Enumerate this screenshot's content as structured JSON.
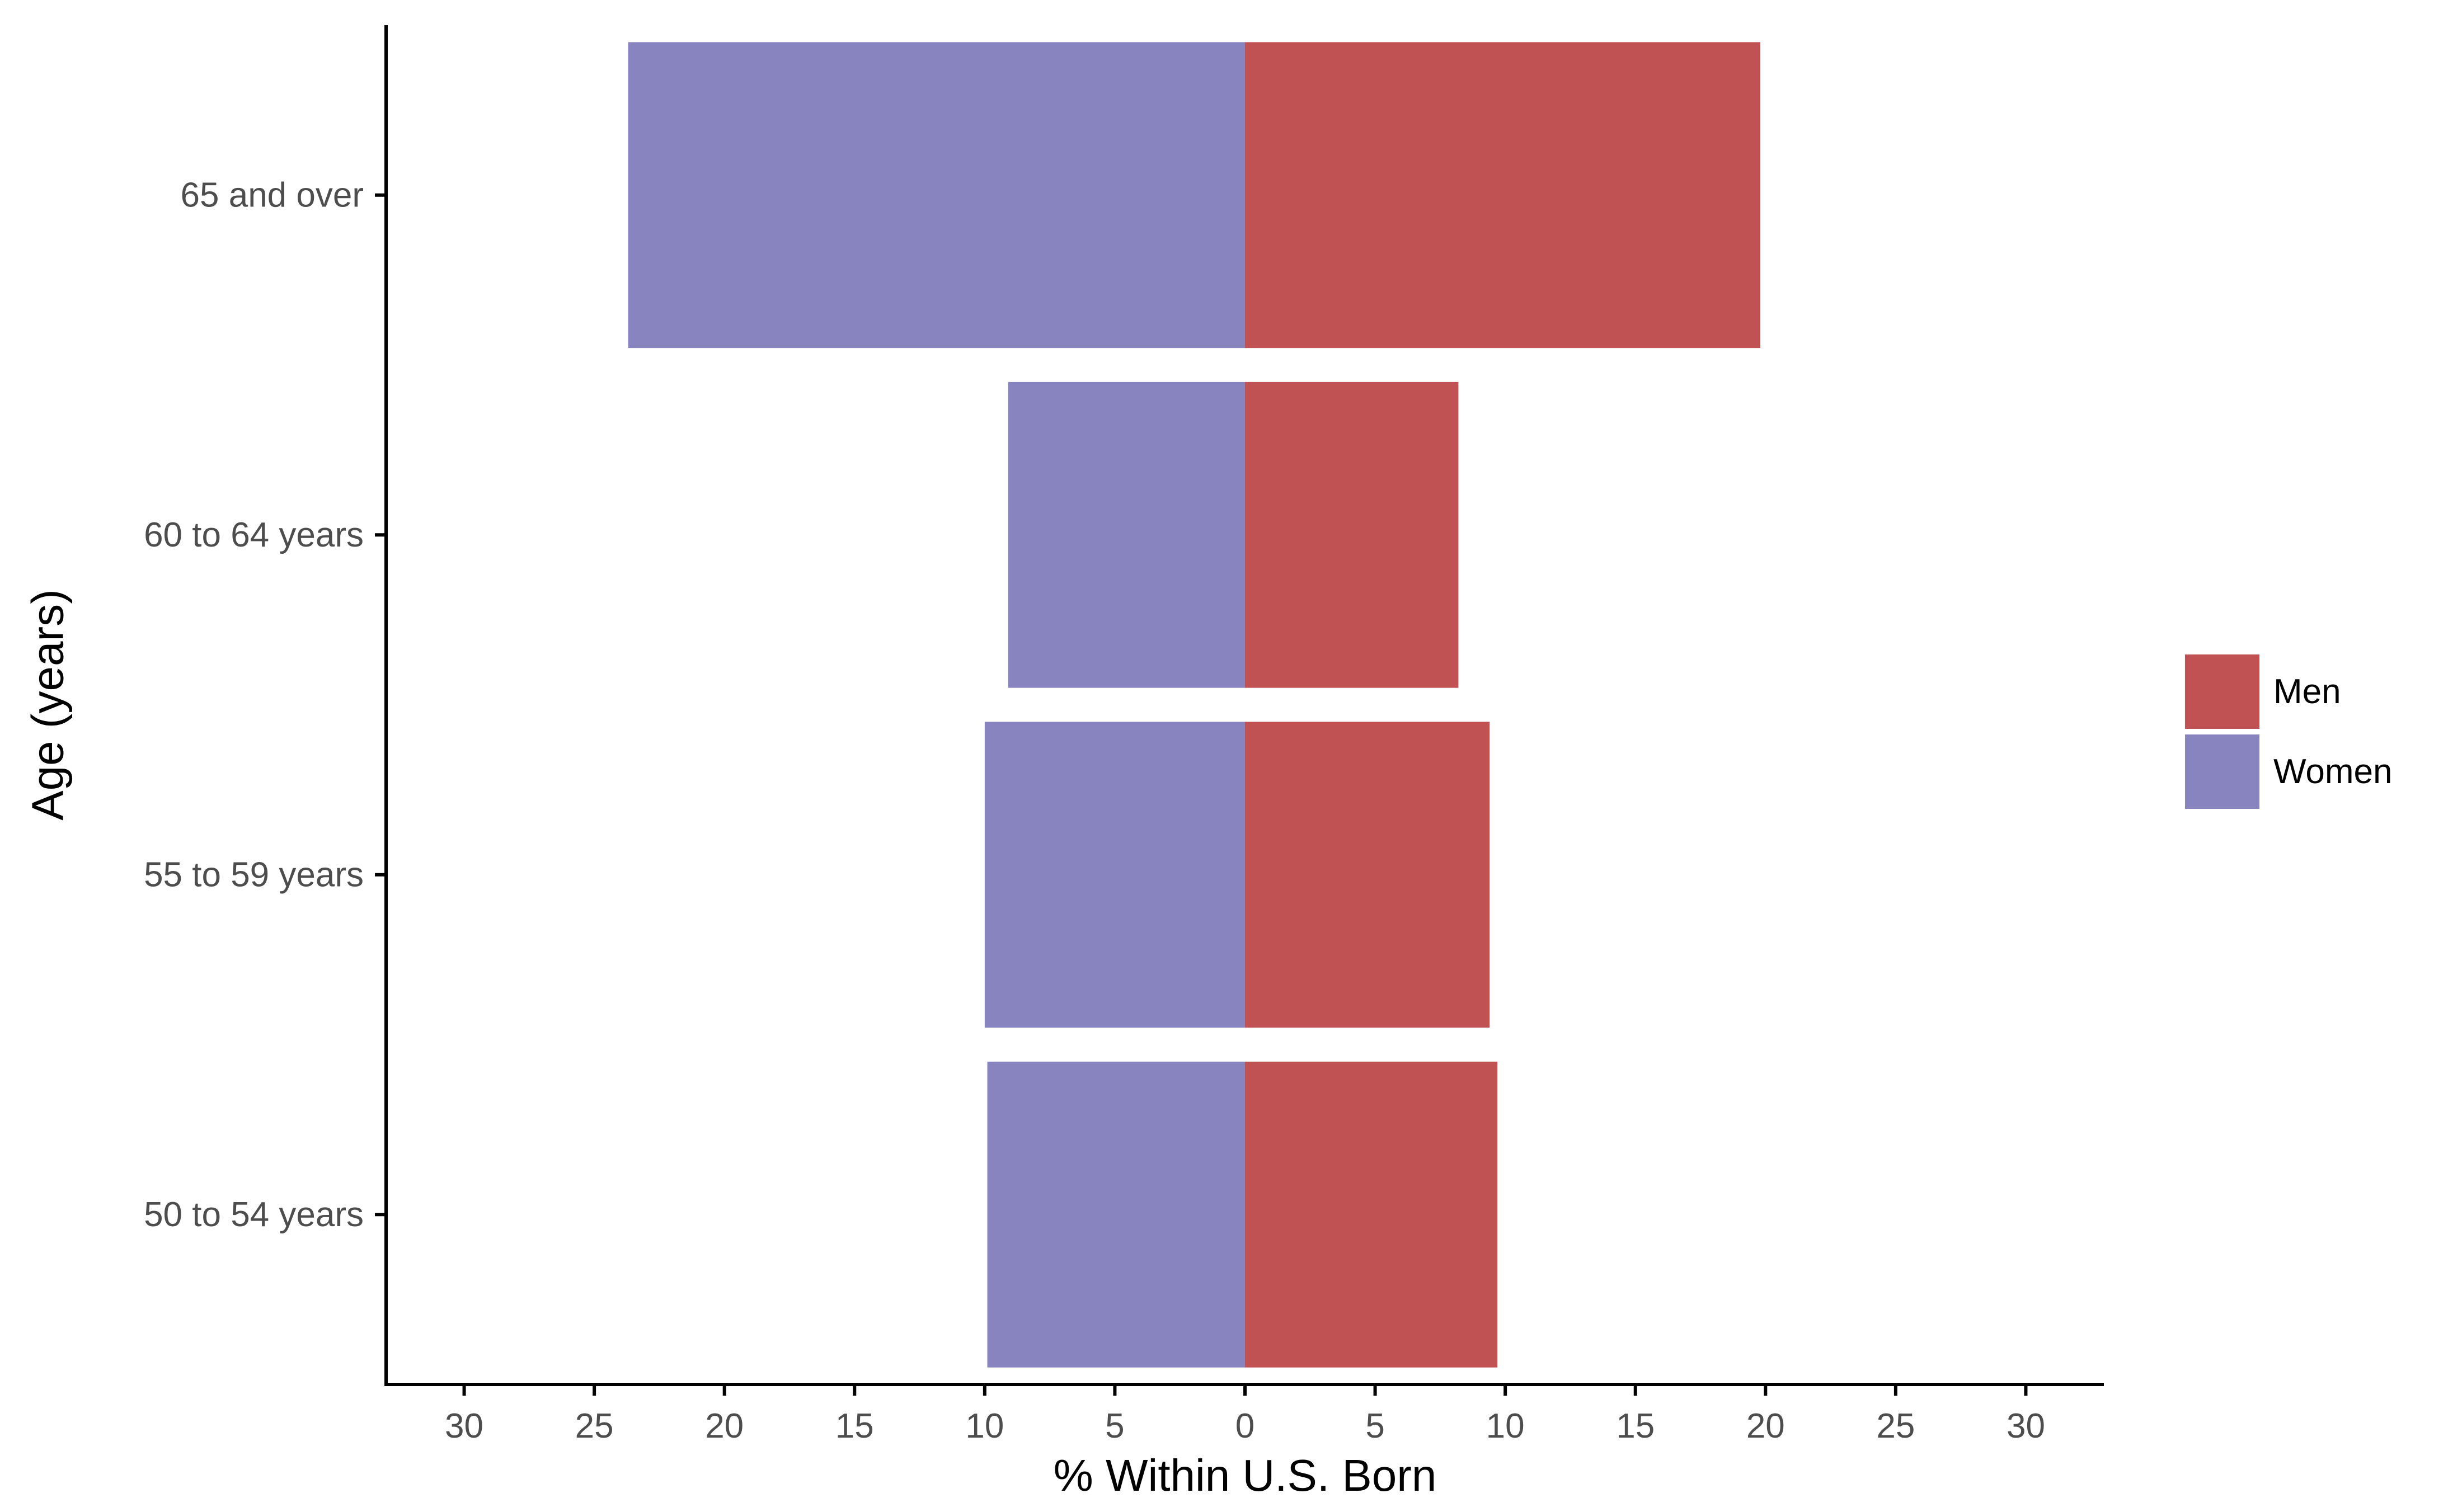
{
  "chart_data": {
    "type": "bar",
    "orientation": "horizontal",
    "layout": "population-pyramid",
    "categories": [
      "50 to 54 years",
      "55 to 59 years",
      "60 to 64 years",
      "65 and over"
    ],
    "series": [
      {
        "name": "Women",
        "side": "left",
        "color": "#8884C0",
        "values": [
          9.9,
          10.0,
          9.1,
          23.7
        ]
      },
      {
        "name": "Men",
        "side": "right",
        "color": "#C05254",
        "values": [
          9.7,
          9.4,
          8.2,
          19.8
        ]
      }
    ],
    "xlabel": "% Within U.S. Born",
    "ylabel": "Age (years)",
    "xlim": [
      -33,
      33
    ],
    "x_ticks": [
      -30,
      -25,
      -20,
      -15,
      -10,
      -5,
      0,
      5,
      10,
      15,
      20,
      25,
      30
    ],
    "x_tick_labels": [
      "30",
      "25",
      "20",
      "15",
      "10",
      "5",
      "0",
      "5",
      "10",
      "15",
      "20",
      "25",
      "30"
    ],
    "grid": false,
    "legend": {
      "position": "right",
      "entries": [
        "Men",
        "Women"
      ]
    }
  }
}
